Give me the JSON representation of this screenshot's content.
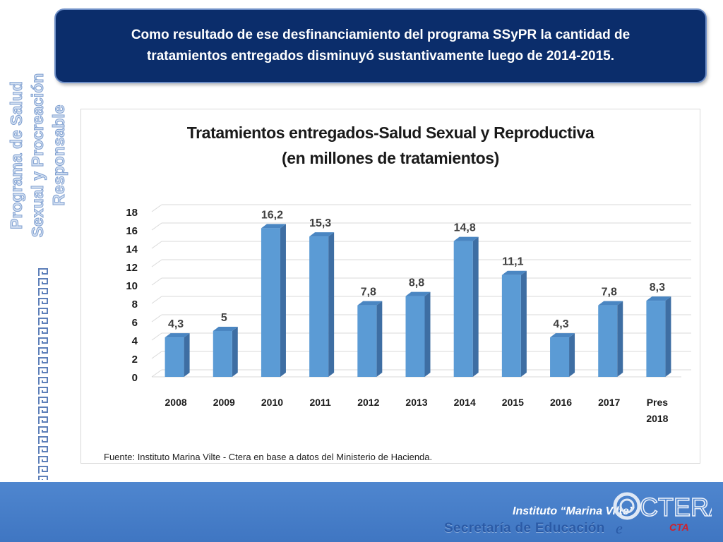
{
  "header": {
    "line1": "Como resultado de ese desfinanciamiento del programa SSyPR la cantidad de",
    "line2": "tratamientos entregados disminuyó sustantivamente luego de 2014-2015."
  },
  "side_title": {
    "line1": "Programa de Salud",
    "line2": "Sexual y Procreación",
    "line3": "Responsable"
  },
  "chart_data": {
    "type": "bar",
    "title_line1": "Tratamientos entregados-Salud Sexual y Reproductiva",
    "title_line2": "(en millones de tratamientos)",
    "categories": [
      "2008",
      "2009",
      "2010",
      "2011",
      "2012",
      "2013",
      "2014",
      "2015",
      "2016",
      "2017",
      "Pres 2018"
    ],
    "values": [
      4.3,
      5,
      16.2,
      15.3,
      7.8,
      8.8,
      14.8,
      11.1,
      4.3,
      7.8,
      8.3
    ],
    "data_labels": [
      "4,3",
      "5",
      "16,2",
      "15,3",
      "7,8",
      "8,8",
      "14,8",
      "11,1",
      "4,3",
      "7,8",
      "8,3"
    ],
    "yticks": [
      "0",
      "2",
      "4",
      "6",
      "8",
      "10",
      "12",
      "14",
      "16",
      "18"
    ],
    "ylim": [
      0,
      18
    ],
    "grid": true,
    "legend": "none",
    "colors": {
      "bar_front": "#5b9bd5",
      "bar_side": "#3e6ea3",
      "bar_top": "#4a86c2",
      "grid": "#d9d9d9"
    }
  },
  "source": "Fuente: Instituto Marina Vilte - Ctera en base a datos del Ministerio de Hacienda.",
  "footer": {
    "institute": "Instituto “Marina Vilte”",
    "secretaria": "Secretaría de Educación",
    "logo_text": "CTERA",
    "logo_sub": "CTA"
  },
  "colors": {
    "header_bg": "#0b2d6b",
    "footer_bg": "#4a80cc",
    "side_title": "#c9d8ef"
  }
}
